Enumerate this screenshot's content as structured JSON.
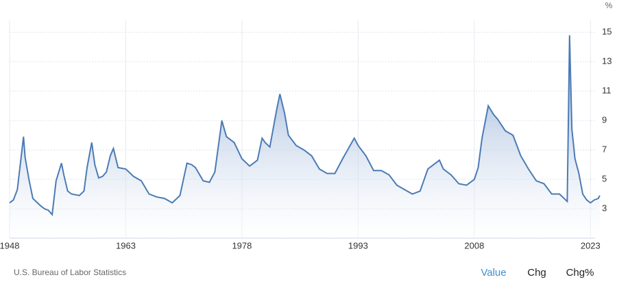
{
  "chart_data": {
    "type": "area",
    "unit": "%",
    "source": "U.S. Bureau of Labor Statistics",
    "buttons": [
      "Value",
      "Chg",
      "Chg%"
    ],
    "x": [
      1948.0,
      1948.5,
      1949.0,
      1949.8,
      1950.0,
      1950.5,
      1951.0,
      1952.0,
      1952.5,
      1953.0,
      1953.5,
      1954.0,
      1954.7,
      1955.0,
      1955.5,
      1956.0,
      1957.0,
      1957.6,
      1958.0,
      1958.6,
      1959.0,
      1959.5,
      1960.0,
      1960.5,
      1961.0,
      1961.4,
      1962.0,
      1963.0,
      1964.0,
      1965.0,
      1966.0,
      1967.0,
      1968.0,
      1969.0,
      1970.0,
      1970.9,
      1971.5,
      1972.0,
      1973.0,
      1973.8,
      1974.5,
      1975.4,
      1976.0,
      1977.0,
      1978.0,
      1979.0,
      1980.0,
      1980.6,
      1981.0,
      1981.6,
      1982.5,
      1982.9,
      1983.5,
      1984.0,
      1985.0,
      1986.0,
      1987.0,
      1988.0,
      1989.0,
      1990.0,
      1991.0,
      1992.5,
      1993.0,
      1994.0,
      1995.0,
      1996.0,
      1997.0,
      1998.0,
      1999.0,
      2000.0,
      2001.0,
      2002.0,
      2003.5,
      2004.0,
      2005.0,
      2006.0,
      2007.0,
      2008.0,
      2008.5,
      2009.0,
      2009.8,
      2010.5,
      2011.0,
      2012.0,
      2013.0,
      2014.0,
      2015.0,
      2016.0,
      2017.0,
      2018.0,
      2019.0,
      2020.0,
      2020.3,
      2020.6,
      2021.0,
      2021.5,
      2022.0,
      2022.5,
      2023.0,
      2023.5,
      2024.0,
      2024.2
    ],
    "series": [
      {
        "color": "#4a7ab5",
        "values": [
          3.4,
          3.6,
          4.3,
          7.9,
          6.5,
          5.0,
          3.7,
          3.2,
          3.0,
          2.9,
          2.6,
          4.9,
          6.1,
          5.3,
          4.2,
          4.0,
          3.9,
          4.2,
          5.8,
          7.5,
          6.0,
          5.1,
          5.2,
          5.5,
          6.6,
          7.1,
          5.8,
          5.7,
          5.2,
          4.9,
          4.0,
          3.8,
          3.7,
          3.4,
          3.9,
          6.1,
          6.0,
          5.8,
          4.9,
          4.8,
          5.5,
          9.0,
          7.9,
          7.5,
          6.4,
          5.9,
          6.3,
          7.8,
          7.5,
          7.2,
          9.8,
          10.8,
          9.5,
          8.0,
          7.3,
          7.0,
          6.6,
          5.7,
          5.4,
          5.4,
          6.4,
          7.8,
          7.3,
          6.6,
          5.6,
          5.6,
          5.3,
          4.6,
          4.3,
          4.0,
          4.2,
          5.7,
          6.3,
          5.7,
          5.3,
          4.7,
          4.6,
          5.0,
          5.8,
          7.8,
          10.0,
          9.4,
          9.1,
          8.3,
          8.0,
          6.6,
          5.7,
          4.9,
          4.7,
          4.0,
          4.0,
          3.5,
          14.8,
          8.4,
          6.4,
          5.4,
          4.0,
          3.6,
          3.4,
          3.6,
          3.7,
          3.9
        ]
      }
    ],
    "xlim": [
      1948,
      2024.3
    ],
    "xticks": [
      1948,
      1963,
      1978,
      1993,
      2008,
      2023
    ],
    "ylim": [
      1.0,
      15.8
    ],
    "yticks": [
      3,
      5,
      7,
      9,
      11,
      13,
      15
    ],
    "grid": true
  }
}
